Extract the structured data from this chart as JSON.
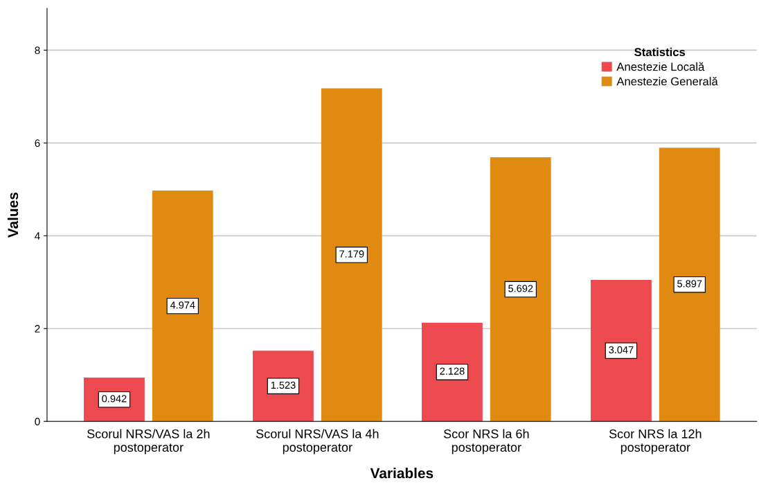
{
  "chart_data": {
    "type": "bar",
    "xlabel": "Variables",
    "ylabel": "Values",
    "legend_title": "Statistics",
    "categories": [
      "Scorul NRS/VAS la 2h\npostoperator",
      "Scorul NRS/VAS la 4h\npostoperator",
      "Scor NRS la 6h\npostoperator",
      "Scor NRS la 12h\npostoperator"
    ],
    "series": [
      {
        "name": "Anestezie Locală",
        "color": "#ec4a4f",
        "values": [
          0.942,
          1.523,
          2.128,
          3.047
        ]
      },
      {
        "name": "Anestezie Generală",
        "color": "#e08a12",
        "values": [
          4.974,
          7.179,
          5.692,
          5.897
        ]
      }
    ],
    "ylim": [
      0,
      8.9
    ],
    "yticks": [
      0,
      2,
      4,
      6,
      8
    ],
    "grid": "y",
    "legend": "top right",
    "data_labels": true
  }
}
